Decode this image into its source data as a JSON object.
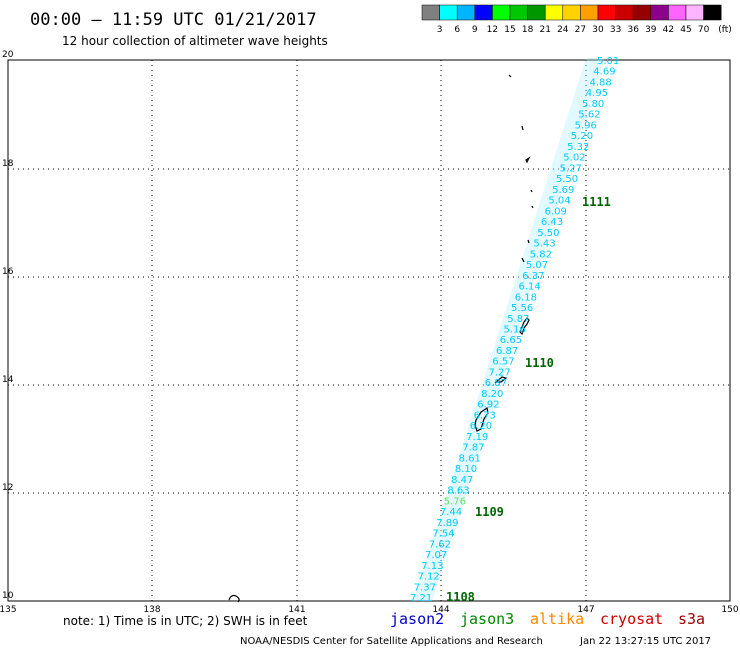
{
  "header": {
    "title": "00:00 – 11:59 UTC 01/21/2017",
    "subtitle": "12 hour collection of altimeter wave heights"
  },
  "colorbar": {
    "colors": [
      "#808080",
      "#00ffff",
      "#00b4ff",
      "#0000ff",
      "#00ff00",
      "#00c800",
      "#009600",
      "#ffff00",
      "#ffd200",
      "#ffa000",
      "#ff0000",
      "#c80000",
      "#960000",
      "#8c008c",
      "#ff64ff",
      "#ffb4ff",
      "#000000"
    ],
    "labels": [
      "3",
      "6",
      "9",
      "12",
      "15",
      "18",
      "21",
      "24",
      "27",
      "30",
      "33",
      "36",
      "39",
      "42",
      "45",
      "70"
    ],
    "unit": "(ft)"
  },
  "axes": {
    "x_ticks": [
      "135",
      "138",
      "141",
      "144",
      "147",
      "150"
    ],
    "y_ticks": [
      "20",
      "18",
      "16",
      "14",
      "12",
      "10"
    ]
  },
  "track_values": [
    "5.01",
    "4.69",
    "4.88",
    "4.95",
    "5.80",
    "5.62",
    "5.96",
    "5.20",
    "5.32",
    "5.02",
    "5.27",
    "5.50",
    "5.69",
    "5.04",
    "6.09",
    "6.43",
    "5.50",
    "5.43",
    "5.82",
    "5.07",
    "6.37",
    "6.14",
    "6.18",
    "5.56",
    "5.87",
    "5.16",
    "6.65",
    "6.87",
    "6.57",
    "7.27",
    "6.87",
    "8.20",
    "6.92",
    "6.73",
    "6.20",
    "7.19",
    "7.87",
    "8.61",
    "8.10",
    "8.47",
    "8.63",
    "5.76",
    "7.44",
    "7.89",
    "7.54",
    "7.62",
    "7.07",
    "7.13",
    "7.12",
    "7.37",
    "7.21"
  ],
  "pass_labels": [
    "1111",
    "1110",
    "1109",
    "1108"
  ],
  "colors": {
    "jason2": "#0000cc",
    "jason3": "#008800",
    "altika": "#ff8800",
    "cryosat": "#cc0000",
    "s3a": "#990000",
    "track": "#00ccff",
    "swath": "#aaeeff",
    "pass": "#006600"
  },
  "footer": {
    "note": "note: 1) Time is in UTC; 2) SWH is in feet",
    "missions": [
      "jason2",
      "jason3",
      "altika",
      "cryosat",
      "s3a"
    ],
    "credit": "NOAA/NESDIS Center for Satellite Applications and Research",
    "timestamp": "Jan 22 13:27:15 UTC 2017"
  }
}
